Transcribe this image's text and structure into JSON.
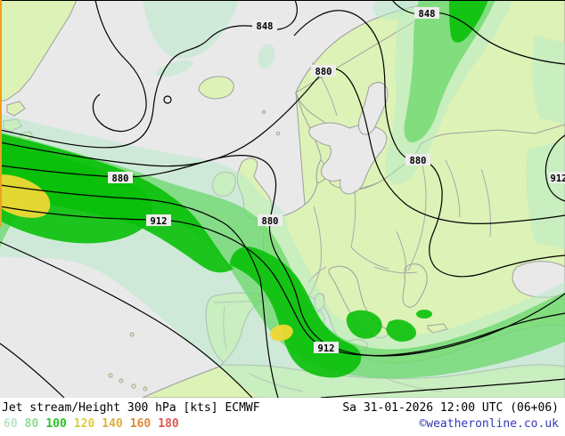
{
  "legend": {
    "title": "Jet stream/Height 300 hPa [kts] ECMWF",
    "datetime": "Sa 31-01-2026 12:00 UTC (06+06)",
    "copyright": "©weatheronline.co.uk",
    "copyright_color": "#3636b8",
    "scale": [
      {
        "label": "60",
        "color": "#b9e6c4"
      },
      {
        "label": "80",
        "color": "#8fdc8f"
      },
      {
        "label": "100",
        "color": "#2cc42c"
      },
      {
        "label": "120",
        "color": "#ddce3d"
      },
      {
        "label": "140",
        "color": "#dfae3a"
      },
      {
        "label": "160",
        "color": "#df8a3a"
      },
      {
        "label": "180",
        "color": "#df5a52"
      }
    ]
  },
  "map": {
    "type": "weather-map",
    "variable": "Jet stream / geopotential height 300 hPa",
    "model": "ECMWF",
    "units": "kts",
    "sea_color": "#e9e9e9",
    "land_color": "#ddf2b6",
    "jet_band_colors": {
      "60": "#cfe9d8",
      "80": "#8bdc8b",
      "100": "#1fc41f",
      "120": "#eed93f"
    },
    "contour_labels": [
      {
        "value": "848"
      },
      {
        "value": "848"
      },
      {
        "value": "880"
      },
      {
        "value": "880"
      },
      {
        "value": "880"
      },
      {
        "value": "880"
      },
      {
        "value": "912"
      },
      {
        "value": "912"
      },
      {
        "value": "912"
      }
    ]
  }
}
